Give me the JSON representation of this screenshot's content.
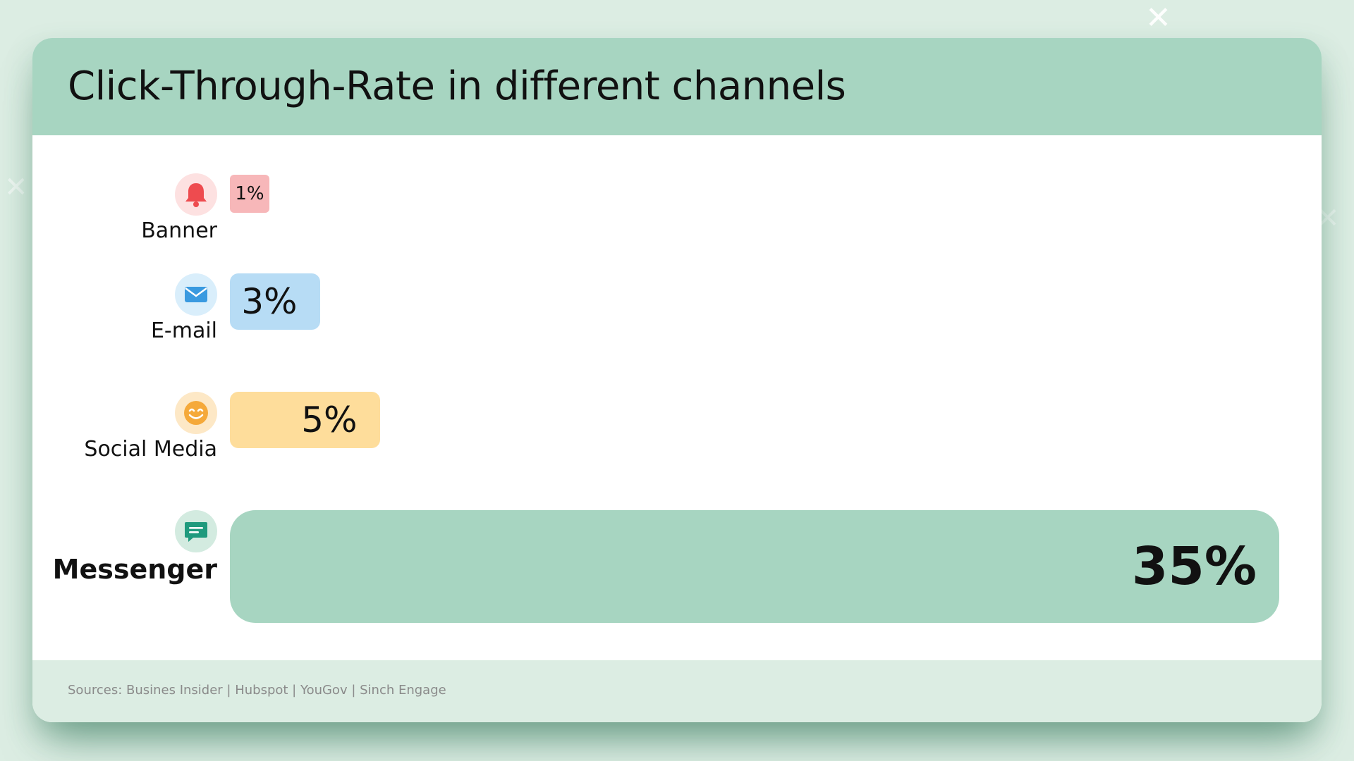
{
  "title": "Click-Through-Rate in different channels",
  "sources": "Sources: Busines Insider | Hubspot | YouGov | Sinch Engage",
  "colors": {
    "header": "#a7d5c1",
    "background": "#dcede3",
    "banner": "#f7b7b9",
    "email": "#b7dcf5",
    "social": "#fedd9b",
    "messenger": "#a7d5c1"
  },
  "chart_data": {
    "type": "bar",
    "orientation": "horizontal",
    "title": "Click-Through-Rate in different channels",
    "categories": [
      "Banner",
      "E-mail",
      "Social Media",
      "Messenger"
    ],
    "values": [
      1,
      3,
      5,
      35
    ],
    "value_labels": [
      "1%",
      "3%",
      "5%",
      "35%"
    ],
    "icons": [
      "bell-icon",
      "envelope-icon",
      "smiley-icon",
      "chat-bubble-icon"
    ],
    "unit": "%",
    "grid": false,
    "legend": "none"
  }
}
